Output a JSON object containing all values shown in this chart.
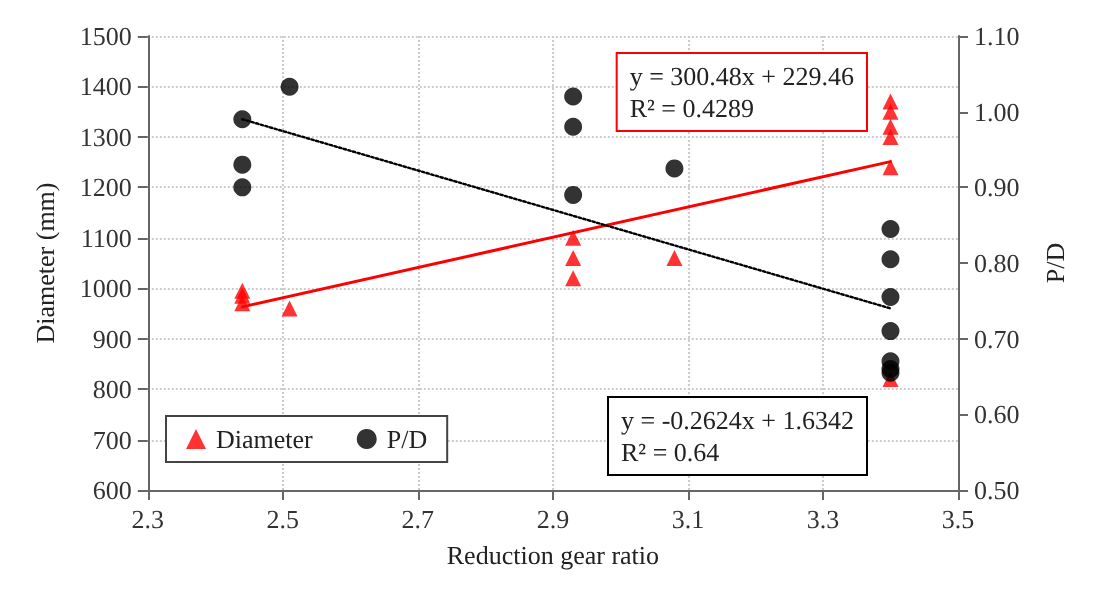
{
  "chart_data": {
    "type": "scatter",
    "xlabel": "Reduction gear ratio",
    "ylabel": "Diameter (mm)",
    "y2label": "P/D",
    "xlim": [
      2.3,
      3.5
    ],
    "xticks": [
      2.3,
      2.5,
      2.7,
      2.9,
      3.1,
      3.3,
      3.5
    ],
    "ylim": [
      600,
      1500
    ],
    "yticks": [
      600,
      700,
      800,
      900,
      1000,
      1100,
      1200,
      1300,
      1400,
      1500
    ],
    "y2lim": [
      0.5,
      1.1
    ],
    "y2ticks": [
      {
        "value": 0.5,
        "label": "0.50"
      },
      {
        "value": 0.6,
        "label": "0.60"
      },
      {
        "value": 0.7,
        "label": "0.70"
      },
      {
        "value": 0.8,
        "label": "0.80"
      },
      {
        "value": 0.9,
        "label": "0.90"
      },
      {
        "value": 1.0,
        "label": "1.00"
      },
      {
        "value": 1.1,
        "label": "1.10"
      }
    ],
    "grid": true,
    "legend": "bottom left",
    "series": [
      {
        "name": "Diameter",
        "type": "scatter",
        "marker": "triangle",
        "color": "#ff0000",
        "x": [
          2.44,
          2.44,
          2.44,
          2.51,
          2.93,
          2.93,
          2.93,
          3.08,
          3.4,
          3.4,
          3.4,
          3.4,
          3.4,
          3.4
        ],
        "values": [
          995,
          985,
          970,
          960,
          1100,
          1060,
          1020,
          1060,
          1370,
          1350,
          1320,
          1300,
          1240,
          820
        ]
      },
      {
        "name": "P/D",
        "type": "scatter",
        "marker": "circle",
        "color": "#000000",
        "axis": "y2",
        "x": [
          2.44,
          2.44,
          2.44,
          2.51,
          2.93,
          2.93,
          2.93,
          3.08,
          3.4,
          3.4,
          3.4,
          3.4,
          3.4,
          3.4,
          3.4
        ],
        "values": [
          0.99,
          0.93,
          0.9,
          1.033,
          1.02,
          0.98,
          0.89,
          0.925,
          0.845,
          0.805,
          0.755,
          0.71,
          0.67,
          0.66,
          0.655
        ]
      },
      {
        "type": "line",
        "marker": "none",
        "line_style": "solid",
        "color": "#ff0000",
        "x": [
          2.44,
          3.4
        ],
        "values": [
          963,
          1251
        ]
      },
      {
        "type": "line",
        "marker": "none",
        "line_style": "dotted",
        "color": "#000000",
        "axis": "y2",
        "x": [
          2.44,
          3.4
        ],
        "values": [
          0.99,
          0.74
        ]
      }
    ],
    "annotations": [
      "y = 300.48x + 229.46\nR² = 0.4289",
      "y = -0.2624x + 1.6342\nR² = 0.64"
    ]
  }
}
